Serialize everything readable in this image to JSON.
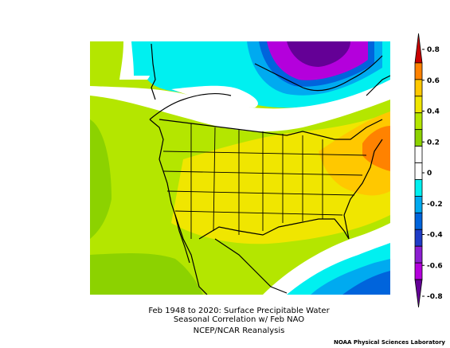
{
  "title": {
    "line1": "Feb 1948 to 2020: Surface Precipitable Water",
    "line2": "Seasonal Correlation w/ Feb NAO",
    "line3": "NCEP/NCAR Reanalysis"
  },
  "credit": "NOAA Physical Sciences Laboratory",
  "colorbar": {
    "labels": [
      "0.8",
      "0.6",
      "0.4",
      "0.2",
      "0",
      "-0.2",
      "-0.4",
      "-0.6",
      "-0.8"
    ],
    "colors": [
      "#c80000",
      "#ff8200",
      "#ffc800",
      "#f0e600",
      "#b4e600",
      "#8cd200",
      "#ffffff",
      "#ffffff",
      "#00f0f0",
      "#00aaf0",
      "#0064dc",
      "#1e3cc8",
      "#8c1ed2",
      "#b400dc",
      "#640096"
    ]
  },
  "map": {
    "colors": {
      "yellow_green": "#b4e600",
      "green": "#8cd200",
      "yellow": "#f0e600",
      "gold": "#ffc800",
      "orange": "#ff8200",
      "white": "#ffffff",
      "cyan": "#00f0f0",
      "light_blue": "#00aaf0",
      "blue": "#0064dc",
      "purple": "#b400dc",
      "dark_purple": "#640096"
    }
  }
}
